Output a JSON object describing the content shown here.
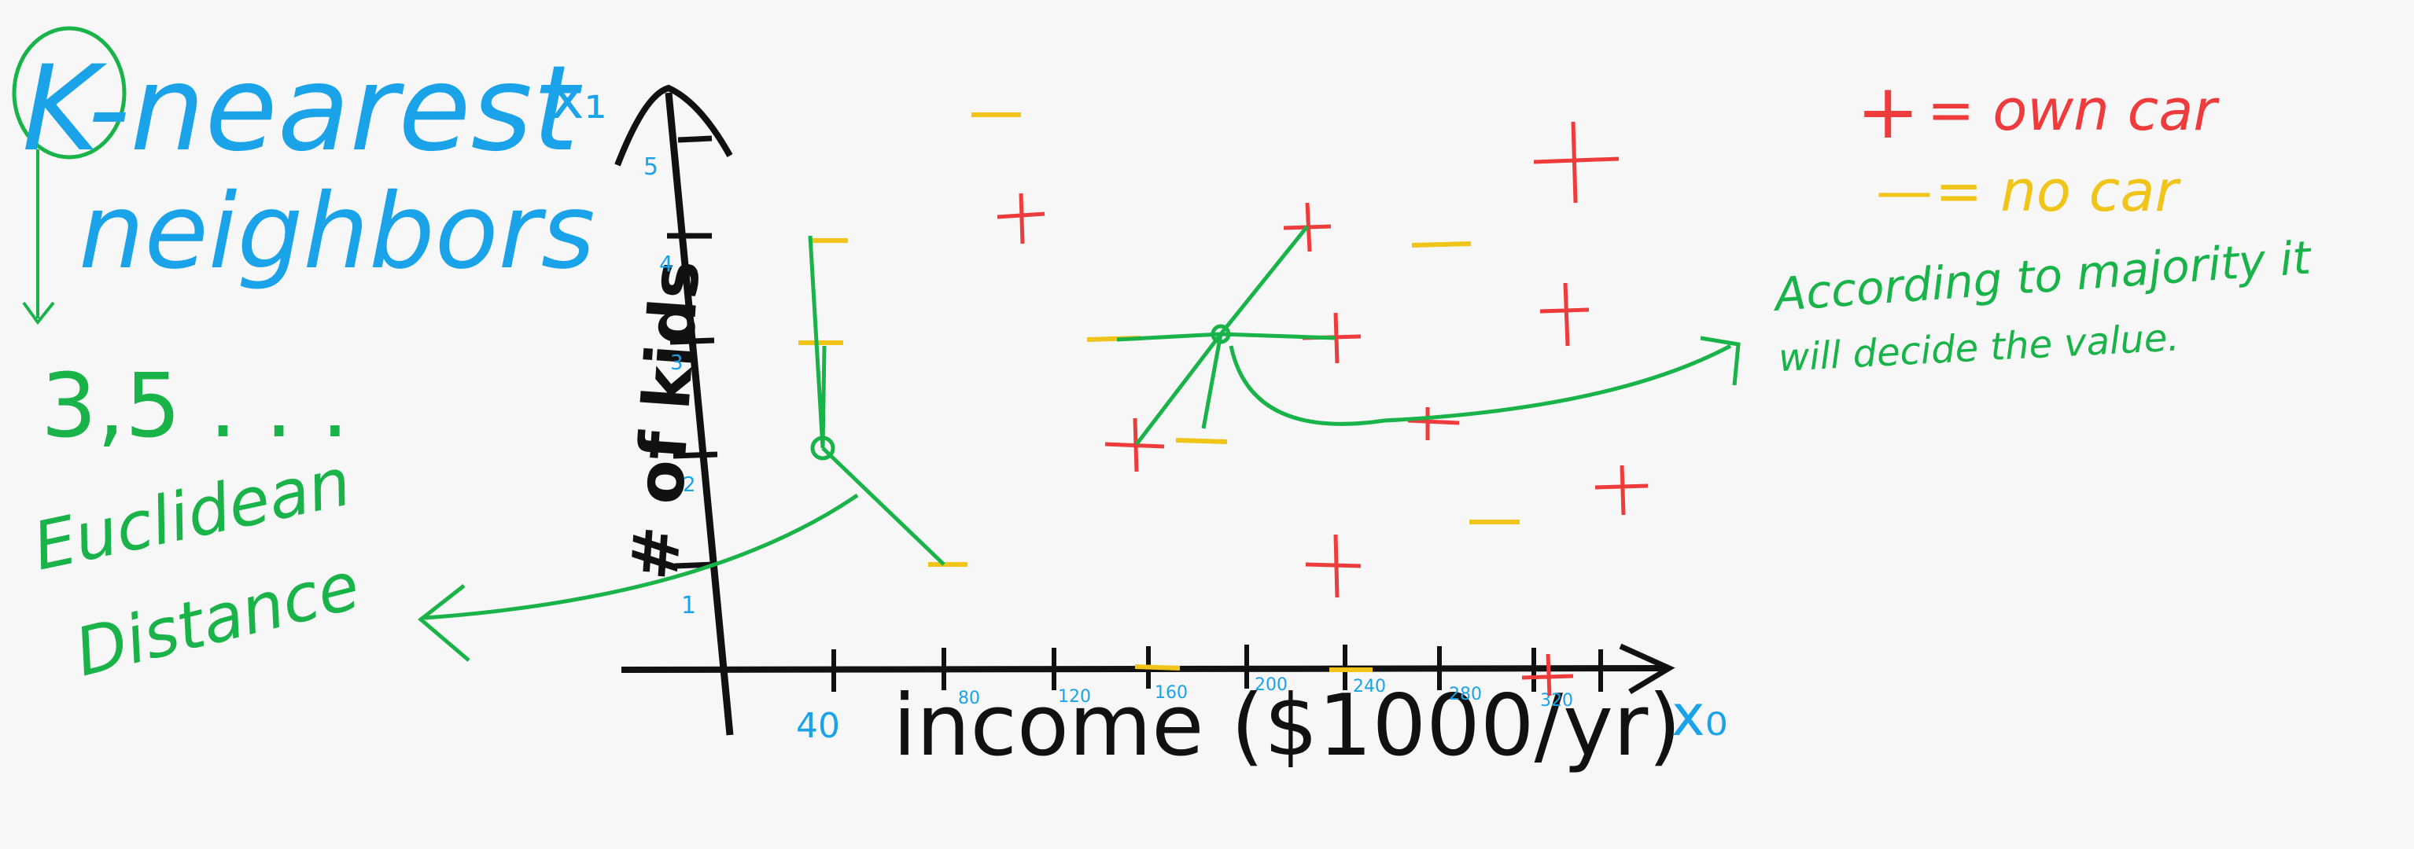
{
  "title": {
    "line1": "K-nearest",
    "line2": "neighbors",
    "k_values": "3,5 . . .",
    "metric_line1": "Euclidean",
    "metric_line2": "Distance"
  },
  "axes": {
    "y_name": "x₁",
    "y_label": "# of kids",
    "y_ticks": [
      "1",
      "2",
      "3",
      "4",
      "5"
    ],
    "x_name": "x₀",
    "x_label": "income ($1000/yr)",
    "x_ticks": [
      "40",
      "80",
      "120",
      "160",
      "200",
      "240",
      "280",
      "320"
    ]
  },
  "legend": {
    "plus_symbol": "+",
    "plus_text": "= own car",
    "minus_symbol": "—",
    "minus_text": "= no car"
  },
  "annotation": {
    "line1": "According to majority it",
    "line2": "will decide the value."
  },
  "colors": {
    "blue": "#1aa3e8",
    "green": "#19b34a",
    "red": "#ee3b3b",
    "yellow": "#f0c419",
    "black": "#111111"
  }
}
